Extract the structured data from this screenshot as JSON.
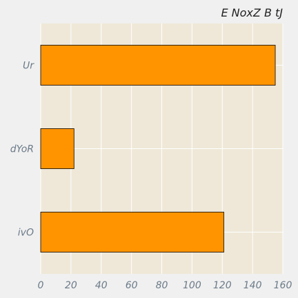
{
  "chart_data": {
    "type": "bar",
    "orientation": "horizontal",
    "title": "E NoxZ B tJ",
    "xlabel": "",
    "ylabel": "",
    "categories": [
      "Ur",
      "dYoR",
      "ivO"
    ],
    "values": [
      155,
      22,
      121
    ],
    "xlim": [
      0,
      160
    ],
    "xticks": [
      0,
      20,
      40,
      60,
      80,
      100,
      120,
      140,
      160
    ],
    "grid": true,
    "legend": "none",
    "colors": {
      "bar": "#ff9400",
      "plot_background": "#efe8d8",
      "figure_background": "#f0f0f0"
    }
  }
}
